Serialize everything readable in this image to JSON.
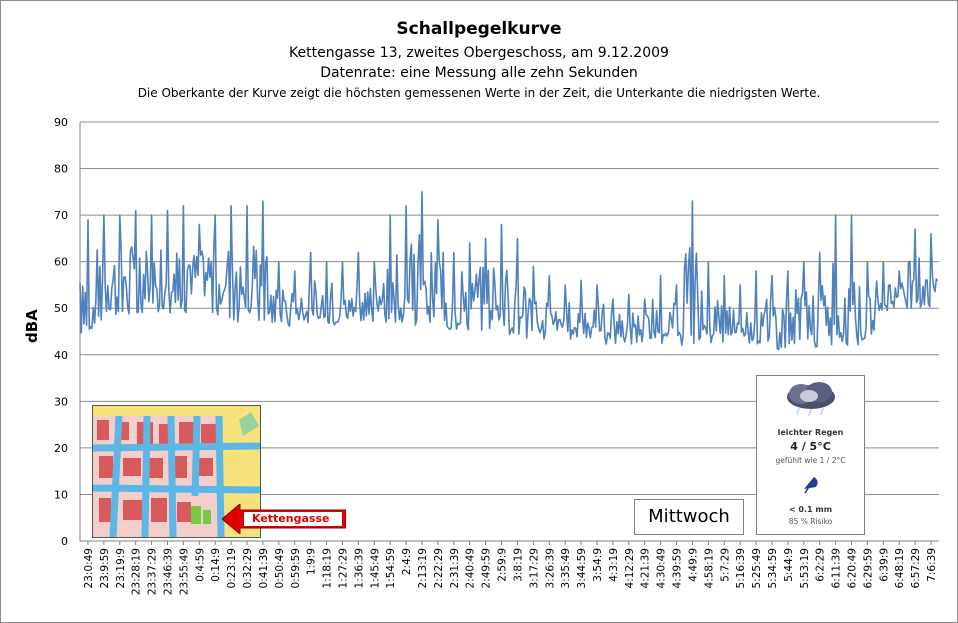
{
  "chart_data": {
    "type": "line",
    "title": "Schallpegelkurve",
    "subtitle_lines": [
      "Kettengasse 13, zweites Obergeschoss, am 9.12.2009",
      "Datenrate: eine Messung alle zehn Sekunden",
      "Die Oberkante der Kurve zeigt die höchsten gemessenen Werte  in der Zeit, die Unterkante  die niedrigsten Werte."
    ],
    "ylabel": "dBA",
    "xlabel": "",
    "ylim": [
      0,
      90
    ],
    "yticks": [
      0,
      10,
      20,
      30,
      40,
      50,
      60,
      70,
      80,
      90
    ],
    "grid": "horizontal",
    "categories": [
      "23:0:49",
      "23:9:59",
      "23:19:9",
      "23:28:19",
      "23:37:29",
      "23:46:39",
      "23:55:49",
      "0:4:59",
      "0:14:9",
      "0:23:19",
      "0:32:29",
      "0:41:39",
      "0:50:49",
      "0:59:59",
      "1:9:9",
      "1:18:19",
      "1:27:29",
      "1:36:39",
      "1:45:49",
      "1:54:59",
      "2:4:9",
      "2:13:19",
      "2:22:29",
      "2:31:39",
      "2:40:49",
      "2:49:59",
      "2:59:9",
      "3:8:19",
      "3:17:29",
      "3:26:39",
      "3:35:49",
      "3:44:59",
      "3:54:9",
      "4:3:19",
      "4:12:29",
      "4:21:39",
      "4:30:49",
      "4:39:59",
      "4:49:9",
      "4:58:19",
      "5:7:29",
      "5:16:39",
      "5:25:49",
      "5:34:59",
      "5:44:9",
      "5:53:19",
      "6:2:29",
      "6:11:39",
      "6:20:49",
      "6:29:59",
      "6:39:9",
      "6:48:19",
      "6:57:29",
      "7:6:39"
    ],
    "series": [
      {
        "upper": [
          69,
          70,
          70,
          71,
          70,
          71,
          72,
          68,
          70,
          72,
          72,
          73,
          60,
          58,
          62,
          60,
          60,
          62,
          60,
          70,
          72,
          75,
          69,
          62,
          64,
          65,
          68,
          65,
          59,
          57,
          55,
          56,
          55,
          52,
          53,
          52,
          57,
          55,
          73,
          60,
          57,
          55,
          58,
          57,
          58,
          60,
          62,
          70,
          70,
          60,
          60,
          58,
          67,
          66
        ],
        "lower": [
          44,
          47,
          48,
          48,
          49,
          49,
          49,
          49,
          48,
          47,
          48,
          47,
          46,
          46,
          46,
          46,
          46,
          46,
          46,
          47,
          47,
          46,
          46,
          45,
          45,
          45,
          45,
          44,
          43,
          43,
          43,
          43,
          43,
          42,
          42,
          42,
          42,
          42,
          42,
          42,
          42,
          42,
          42,
          41,
          41,
          41,
          41,
          42,
          42,
          43,
          49,
          50,
          50,
          50
        ]
      }
    ],
    "line_color": "#4f81bd"
  },
  "inset_map": {
    "label": "Kettengasse",
    "arrow_color": "#e00000"
  },
  "day_box": {
    "label": "Mittwoch"
  },
  "weather_widget": {
    "icon": "rain-cloud-icon",
    "condition": "leichter Regen",
    "temperature": "4 / 5°C",
    "feels_like": "gefühlt wie 1 / 2°C",
    "rain_icon": "umbrella-icon",
    "precipitation": "< 0.1 mm",
    "risk": "85 % Risiko"
  }
}
